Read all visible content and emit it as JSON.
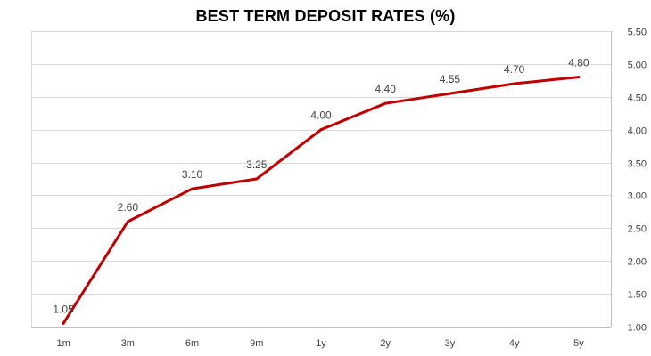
{
  "chart_data": {
    "type": "line",
    "title": "BEST TERM DEPOSIT RATES (%)",
    "xlabel": "",
    "ylabel": "",
    "categories": [
      "1m",
      "3m",
      "6m",
      "9m",
      "1y",
      "2y",
      "3y",
      "4y",
      "5y"
    ],
    "series": [
      {
        "values": [
          1.05,
          2.6,
          3.1,
          3.25,
          4.0,
          4.4,
          4.55,
          4.7,
          4.8
        ],
        "data_labels": [
          "1.05",
          "2.60",
          "3.10",
          "3.25",
          "4.00",
          "4.40",
          "4.55",
          "4.70",
          "4.80"
        ],
        "color": "#C00000"
      }
    ],
    "ylim": [
      1.0,
      5.5
    ],
    "yticks": [
      "1.00",
      "1.50",
      "2.00",
      "2.50",
      "3.00",
      "3.50",
      "4.00",
      "4.50",
      "5.00",
      "5.50"
    ],
    "y_axis_side": "right",
    "grid": true,
    "gridline_color": "#D9D9D9",
    "legend": "none"
  }
}
